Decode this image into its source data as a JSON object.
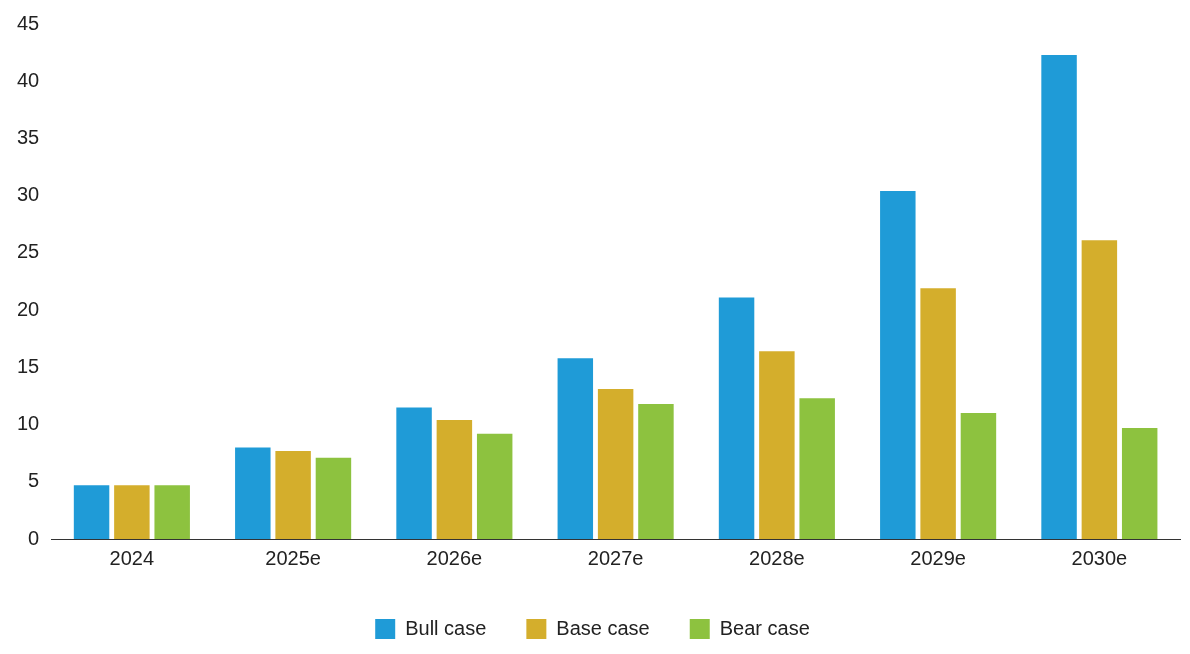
{
  "chart_data": {
    "type": "bar",
    "categories": [
      "2024",
      "2025e",
      "2026e",
      "2027e",
      "2028e",
      "2029e",
      "2030e"
    ],
    "series": [
      {
        "name": "Bull case",
        "color": "#1f9bd7",
        "values": [
          4.7,
          8.0,
          11.5,
          15.8,
          21.1,
          30.4,
          42.3
        ]
      },
      {
        "name": "Base case",
        "color": "#d4ae2c",
        "values": [
          4.7,
          7.7,
          10.4,
          13.1,
          16.4,
          21.9,
          26.1
        ]
      },
      {
        "name": "Bear case",
        "color": "#8dc23f",
        "values": [
          4.7,
          7.1,
          9.2,
          11.8,
          12.3,
          11.0,
          9.7
        ]
      }
    ],
    "ylim": [
      0,
      45
    ],
    "yticks": [
      0,
      5,
      10,
      15,
      20,
      25,
      30,
      35,
      40,
      45
    ],
    "grid": false,
    "legend": "bottom"
  }
}
